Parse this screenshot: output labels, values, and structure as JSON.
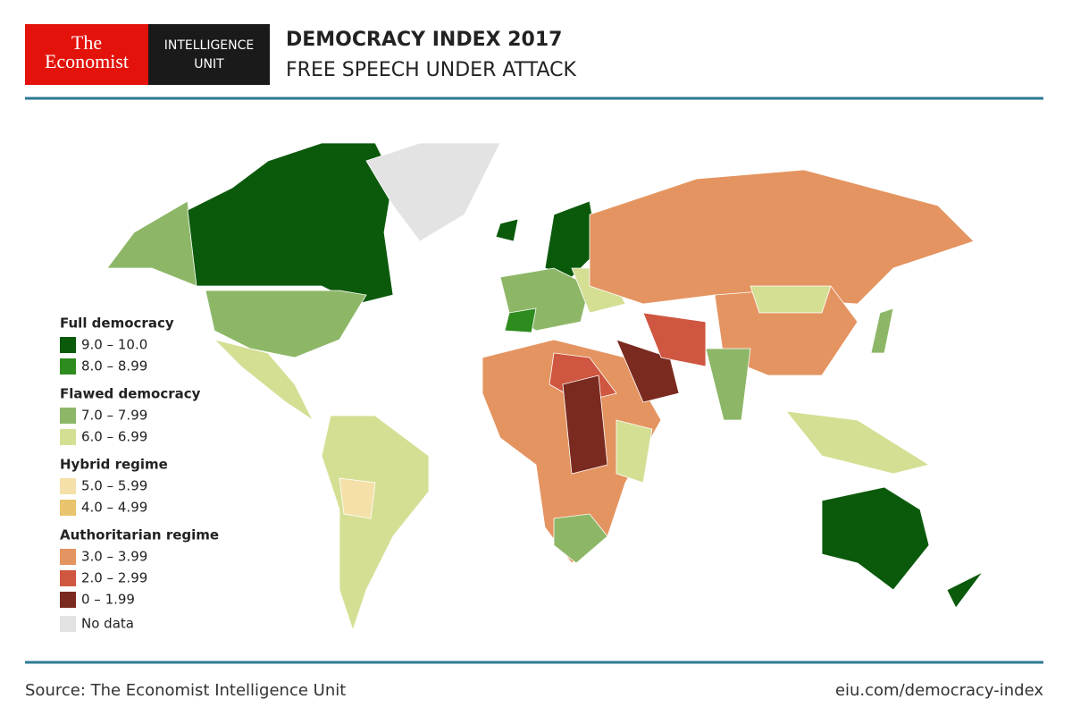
{
  "header": {
    "logo": [
      "The",
      "Economist"
    ],
    "unit": [
      "INTELLIGENCE",
      "UNIT"
    ],
    "title": "DEMOCRACY INDEX 2017",
    "subtitle": "FREE SPEECH UNDER ATTACK"
  },
  "legend": [
    {
      "group": "Full democracy",
      "items": [
        {
          "label": "9.0 – 10.0",
          "color": "#0b5a0c"
        },
        {
          "label": "8.0 – 8.99",
          "color": "#2e8b1e"
        }
      ]
    },
    {
      "group": "Flawed democracy",
      "items": [
        {
          "label": "7.0 – 7.99",
          "color": "#8db767"
        },
        {
          "label": "6.0 – 6.99",
          "color": "#d5df94"
        }
      ]
    },
    {
      "group": "Hybrid regime",
      "items": [
        {
          "label": "5.0 – 5.99",
          "color": "#f4e0a8"
        },
        {
          "label": "4.0 – 4.99",
          "color": "#e9c46c"
        }
      ]
    },
    {
      "group": "Authoritarian regime",
      "items": [
        {
          "label": "3.0 – 3.99",
          "color": "#e49460"
        },
        {
          "label": "2.0 – 2.99",
          "color": "#cf5640"
        },
        {
          "label": "0 – 1.99",
          "color": "#7a2a1f"
        }
      ]
    }
  ],
  "no_data": {
    "label": "No data",
    "color": "#e3e3e3"
  },
  "footer": {
    "source": "Source: The Economist Intelligence Unit",
    "url": "eiu.com/democracy-index"
  }
}
